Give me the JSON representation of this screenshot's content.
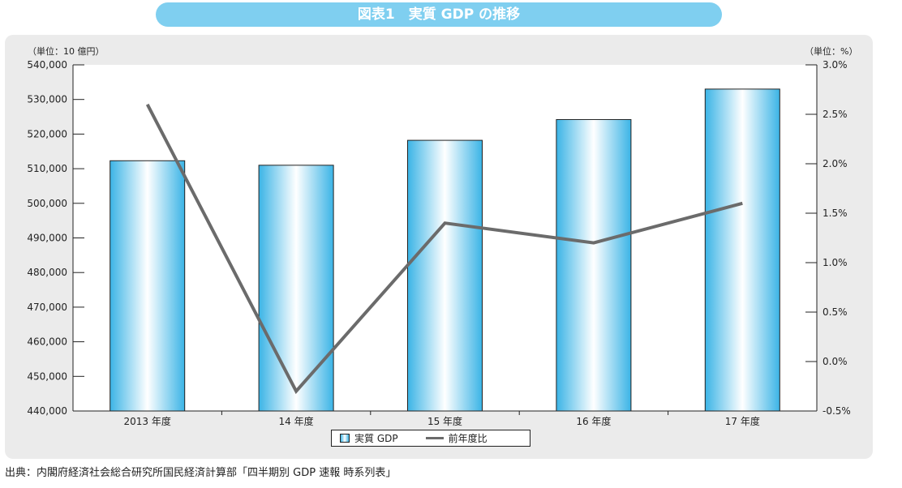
{
  "title": "図表1　実質 GDP の推移",
  "source": "出典：内閣府経済社会総合研究所国民経済計算部「四半期別 GDP 速報 時系列表」",
  "colors": {
    "banner": "#7fcff0",
    "panel": "#ebebeb",
    "bar_edge": "#3bb4e6",
    "bar_center": "#ffffff",
    "line": "#6b6b6b"
  },
  "legend": {
    "bar_label": "実質 GDP",
    "line_label": "前年度比"
  },
  "chart_data": {
    "type": "bar",
    "categories": [
      "2013 年度",
      "14 年度",
      "15 年度",
      "16 年度",
      "17 年度"
    ],
    "series": [
      {
        "name": "実質 GDP",
        "type": "bar",
        "axis": "left",
        "values": [
          512300,
          511000,
          518200,
          524200,
          533000
        ]
      },
      {
        "name": "前年度比",
        "type": "line",
        "axis": "right",
        "values": [
          2.6,
          -0.3,
          1.4,
          1.2,
          1.6
        ]
      }
    ],
    "y_left": {
      "unit_label": "（単位：10 億円）",
      "range": [
        440000,
        540000
      ],
      "ticks": [
        "440,000",
        "450,000",
        "460,000",
        "470,000",
        "480,000",
        "490,000",
        "500,000",
        "510,000",
        "520,000",
        "530,000",
        "540,000"
      ]
    },
    "y_right": {
      "unit_label": "（単位：%）",
      "range": [
        -0.5,
        3.0
      ],
      "ticks": [
        "-0.5%",
        "0.0%",
        "0.5%",
        "1.0%",
        "1.5%",
        "2.0%",
        "2.5%",
        "3.0%"
      ]
    },
    "legend_position": "bottom-center",
    "grid": false
  }
}
